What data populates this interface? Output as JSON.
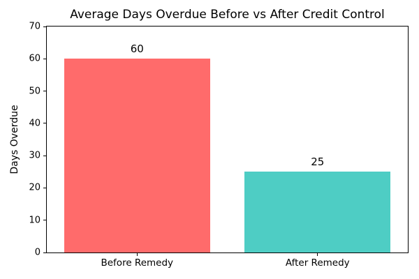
{
  "chart_data": {
    "type": "bar",
    "title": "Average Days Overdue Before vs After Credit Control",
    "categories": [
      "Before Remedy",
      "After Remedy"
    ],
    "values": [
      60,
      25
    ],
    "value_labels": [
      "60",
      "25"
    ],
    "bar_colors": [
      "#FF6B6B",
      "#4ECDC4"
    ],
    "xlabel": "",
    "ylabel": "Days Overdue",
    "ylim": [
      0,
      70
    ],
    "yticks": [
      0,
      10,
      20,
      30,
      40,
      50,
      60,
      70
    ],
    "grid": false,
    "legend": "none",
    "frame": "full-box",
    "text_color": "#000000",
    "background_color": "#ffffff"
  }
}
